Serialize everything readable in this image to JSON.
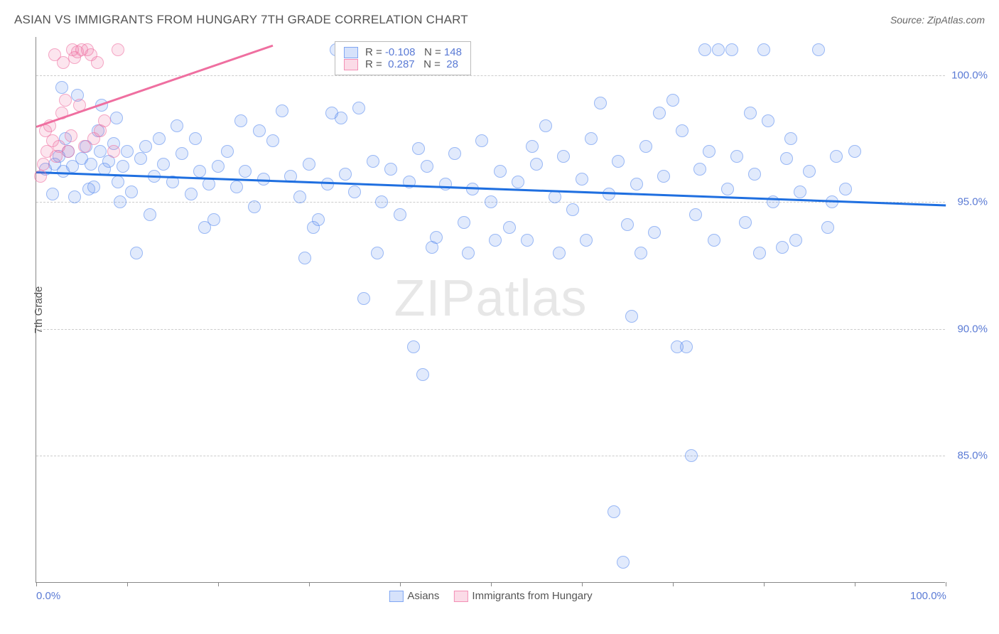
{
  "header": {
    "title": "ASIAN VS IMMIGRANTS FROM HUNGARY 7TH GRADE CORRELATION CHART",
    "source": "Source: ZipAtlas.com"
  },
  "watermark": {
    "left": "ZIP",
    "right": "atlas"
  },
  "chart": {
    "type": "scatter",
    "background_color": "#ffffff",
    "grid_color": "#cccccc",
    "axis_color": "#888888",
    "label_color": "#5b7bd5",
    "text_color": "#555555",
    "y_axis_title": "7th Grade",
    "xlim": [
      0,
      100
    ],
    "ylim": [
      80,
      101.5
    ],
    "x_ticks": [
      0,
      10,
      20,
      30,
      40,
      50,
      60,
      70,
      80,
      90,
      100
    ],
    "x_tick_labels": {
      "0": "0.0%",
      "100": "100.0%"
    },
    "y_gridlines": [
      85,
      90,
      95,
      100
    ],
    "y_tick_labels": {
      "85": "85.0%",
      "90": "90.0%",
      "95": "95.0%",
      "100": "100.0%"
    },
    "marker_radius": 9,
    "marker_stroke_opacity": 0.55,
    "marker_fill_opacity": 0.18,
    "series": [
      {
        "name": "Asians",
        "color": "#5b8def",
        "trend_color": "#1f6fe0",
        "trend": {
          "x1": 0,
          "y1": 96.2,
          "x2": 100,
          "y2": 94.9
        },
        "legend_stats": {
          "R_label": "R =",
          "R": "-0.108",
          "N_label": "N =",
          "N": "148"
        },
        "points": [
          [
            1,
            96.3
          ],
          [
            2,
            96.5
          ],
          [
            2.5,
            96.8
          ],
          [
            3,
            96.2
          ],
          [
            3.5,
            97.0
          ],
          [
            4,
            96.4
          ],
          [
            4.2,
            95.2
          ],
          [
            5,
            96.7
          ],
          [
            5.5,
            97.2
          ],
          [
            6,
            96.5
          ],
          [
            6.3,
            95.6
          ],
          [
            7,
            97.0
          ],
          [
            7.2,
            98.8
          ],
          [
            7.5,
            96.3
          ],
          [
            8,
            96.6
          ],
          [
            8.5,
            97.3
          ],
          [
            9,
            95.8
          ],
          [
            9.5,
            96.4
          ],
          [
            10,
            97.0
          ],
          [
            10.5,
            95.4
          ],
          [
            11,
            93.0
          ],
          [
            11.5,
            96.7
          ],
          [
            12,
            97.2
          ],
          [
            13,
            96.0
          ],
          [
            14,
            96.5
          ],
          [
            15,
            95.8
          ],
          [
            16,
            96.9
          ],
          [
            17,
            95.3
          ],
          [
            17.5,
            97.5
          ],
          [
            18,
            96.2
          ],
          [
            19,
            95.7
          ],
          [
            20,
            96.4
          ],
          [
            21,
            97.0
          ],
          [
            22,
            95.6
          ],
          [
            23,
            96.2
          ],
          [
            24,
            94.8
          ],
          [
            25,
            95.9
          ],
          [
            26,
            97.4
          ],
          [
            27,
            98.6
          ],
          [
            28,
            96.0
          ],
          [
            29,
            95.2
          ],
          [
            29.5,
            92.8
          ],
          [
            30,
            96.5
          ],
          [
            31,
            94.3
          ],
          [
            32,
            95.7
          ],
          [
            33,
            101.0
          ],
          [
            33.5,
            98.3
          ],
          [
            34,
            96.1
          ],
          [
            35,
            95.4
          ],
          [
            35.5,
            98.7
          ],
          [
            36,
            91.2
          ],
          [
            37,
            96.6
          ],
          [
            38,
            95.0
          ],
          [
            39,
            96.3
          ],
          [
            40,
            94.5
          ],
          [
            41,
            95.8
          ],
          [
            41.5,
            89.3
          ],
          [
            42,
            97.1
          ],
          [
            42.5,
            88.2
          ],
          [
            43,
            96.4
          ],
          [
            44,
            93.6
          ],
          [
            45,
            95.7
          ],
          [
            46,
            96.9
          ],
          [
            47,
            94.2
          ],
          [
            48,
            95.5
          ],
          [
            49,
            97.4
          ],
          [
            50,
            95.0
          ],
          [
            51,
            96.2
          ],
          [
            52,
            94.0
          ],
          [
            53,
            95.8
          ],
          [
            54,
            93.5
          ],
          [
            55,
            96.5
          ],
          [
            56,
            98.0
          ],
          [
            57,
            95.2
          ],
          [
            58,
            96.8
          ],
          [
            59,
            94.7
          ],
          [
            60,
            95.9
          ],
          [
            61,
            97.5
          ],
          [
            62,
            98.9
          ],
          [
            63,
            95.3
          ],
          [
            63.5,
            82.8
          ],
          [
            64,
            96.6
          ],
          [
            64.5,
            80.8
          ],
          [
            65,
            94.1
          ],
          [
            65.5,
            90.5
          ],
          [
            66,
            95.7
          ],
          [
            67,
            97.2
          ],
          [
            68,
            93.8
          ],
          [
            69,
            96.0
          ],
          [
            70,
            99.0
          ],
          [
            70.5,
            89.3
          ],
          [
            71,
            97.8
          ],
          [
            71.5,
            89.3
          ],
          [
            72,
            85.0
          ],
          [
            72.5,
            94.5
          ],
          [
            73,
            96.3
          ],
          [
            73.5,
            101.0
          ],
          [
            74,
            97.0
          ],
          [
            75,
            101.0
          ],
          [
            76,
            95.5
          ],
          [
            76.5,
            101.0
          ],
          [
            77,
            96.8
          ],
          [
            78,
            94.2
          ],
          [
            78.5,
            98.5
          ],
          [
            79,
            96.1
          ],
          [
            80,
            101.0
          ],
          [
            80.5,
            98.2
          ],
          [
            81,
            95.0
          ],
          [
            82,
            93.2
          ],
          [
            82.5,
            96.7
          ],
          [
            83,
            97.5
          ],
          [
            84,
            95.4
          ],
          [
            85,
            96.2
          ],
          [
            86,
            101.0
          ],
          [
            87,
            94.0
          ],
          [
            88,
            96.8
          ],
          [
            89,
            95.5
          ],
          [
            90,
            97.0
          ],
          [
            2.8,
            99.5
          ],
          [
            4.5,
            99.2
          ],
          [
            12.5,
            94.5
          ],
          [
            18.5,
            94.0
          ],
          [
            24.5,
            97.8
          ],
          [
            30.5,
            94.0
          ],
          [
            32.5,
            98.5
          ],
          [
            37.5,
            93.0
          ],
          [
            43.5,
            93.2
          ],
          [
            47.5,
            93.0
          ],
          [
            50.5,
            93.5
          ],
          [
            54.5,
            97.2
          ],
          [
            57.5,
            93.0
          ],
          [
            60.5,
            93.5
          ],
          [
            66.5,
            93.0
          ],
          [
            68.5,
            98.5
          ],
          [
            74.5,
            93.5
          ],
          [
            79.5,
            93.0
          ],
          [
            83.5,
            93.5
          ],
          [
            87.5,
            95.0
          ],
          [
            15.5,
            98.0
          ],
          [
            22.5,
            98.2
          ],
          [
            6.8,
            97.8
          ],
          [
            8.8,
            98.3
          ],
          [
            1.8,
            95.3
          ],
          [
            3.2,
            97.5
          ],
          [
            5.8,
            95.5
          ],
          [
            9.2,
            95.0
          ],
          [
            13.5,
            97.5
          ],
          [
            19.5,
            94.3
          ]
        ]
      },
      {
        "name": "Immigrants from Hungary",
        "color": "#ef6fa0",
        "trend_color": "#ef6fa0",
        "trend": {
          "x1": 0,
          "y1": 98.0,
          "x2": 26,
          "y2": 101.2
        },
        "legend_stats": {
          "R_label": "R =",
          "R": "0.287",
          "N_label": "N =",
          "N": "28"
        },
        "points": [
          [
            0.5,
            96.0
          ],
          [
            0.8,
            96.5
          ],
          [
            1.0,
            97.8
          ],
          [
            1.2,
            97.0
          ],
          [
            1.5,
            98.0
          ],
          [
            1.8,
            97.4
          ],
          [
            2.0,
            100.8
          ],
          [
            2.2,
            96.8
          ],
          [
            2.5,
            97.2
          ],
          [
            2.8,
            98.5
          ],
          [
            3.0,
            100.5
          ],
          [
            3.2,
            99.0
          ],
          [
            3.5,
            97.0
          ],
          [
            3.8,
            97.6
          ],
          [
            4.0,
            101.0
          ],
          [
            4.2,
            100.7
          ],
          [
            4.5,
            100.9
          ],
          [
            4.8,
            98.8
          ],
          [
            5.0,
            101.0
          ],
          [
            5.3,
            97.2
          ],
          [
            5.6,
            101.0
          ],
          [
            6.0,
            100.8
          ],
          [
            6.3,
            97.5
          ],
          [
            6.7,
            100.5
          ],
          [
            7.0,
            97.8
          ],
          [
            7.5,
            98.2
          ],
          [
            8.5,
            97.0
          ],
          [
            9.0,
            101.0
          ]
        ]
      }
    ],
    "bottom_legend": [
      {
        "swatch": "#5b8def",
        "label": "Asians"
      },
      {
        "swatch": "#ef6fa0",
        "label": "Immigrants from Hungary"
      }
    ]
  }
}
